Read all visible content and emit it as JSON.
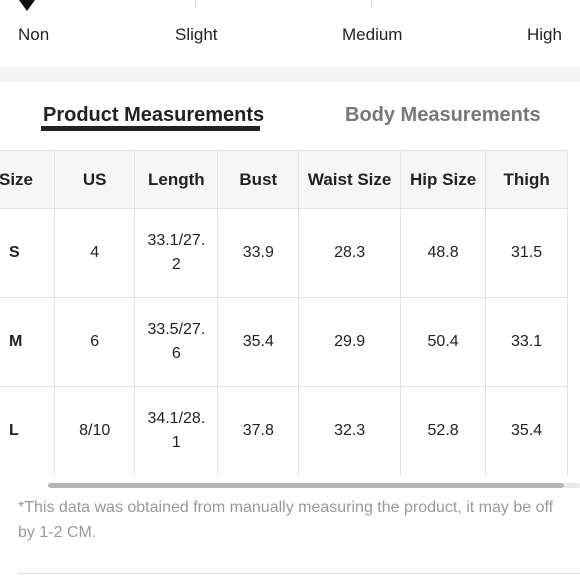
{
  "stretch": {
    "labels": [
      "Non",
      "Slight",
      "Medium",
      "High"
    ],
    "selected": "Non"
  },
  "tabs": {
    "active": "Product Measurements",
    "inactive": "Body Measurements"
  },
  "table": {
    "headers": [
      "Size",
      "US",
      "Length",
      "Bust",
      "Waist Size",
      "Hip Size",
      "Thigh"
    ],
    "rows": [
      [
        "S",
        "4",
        "33.1/27.2",
        "33.9",
        "28.3",
        "48.8",
        "31.5"
      ],
      [
        "M",
        "6",
        "33.5/27.6",
        "35.4",
        "29.9",
        "50.4",
        "33.1"
      ],
      [
        "L",
        "8/10",
        "34.1/28.1",
        "37.8",
        "32.3",
        "52.8",
        "35.4"
      ]
    ]
  },
  "note": "*This data was obtained from manually measuring the product, it may be off by 1-2 CM."
}
